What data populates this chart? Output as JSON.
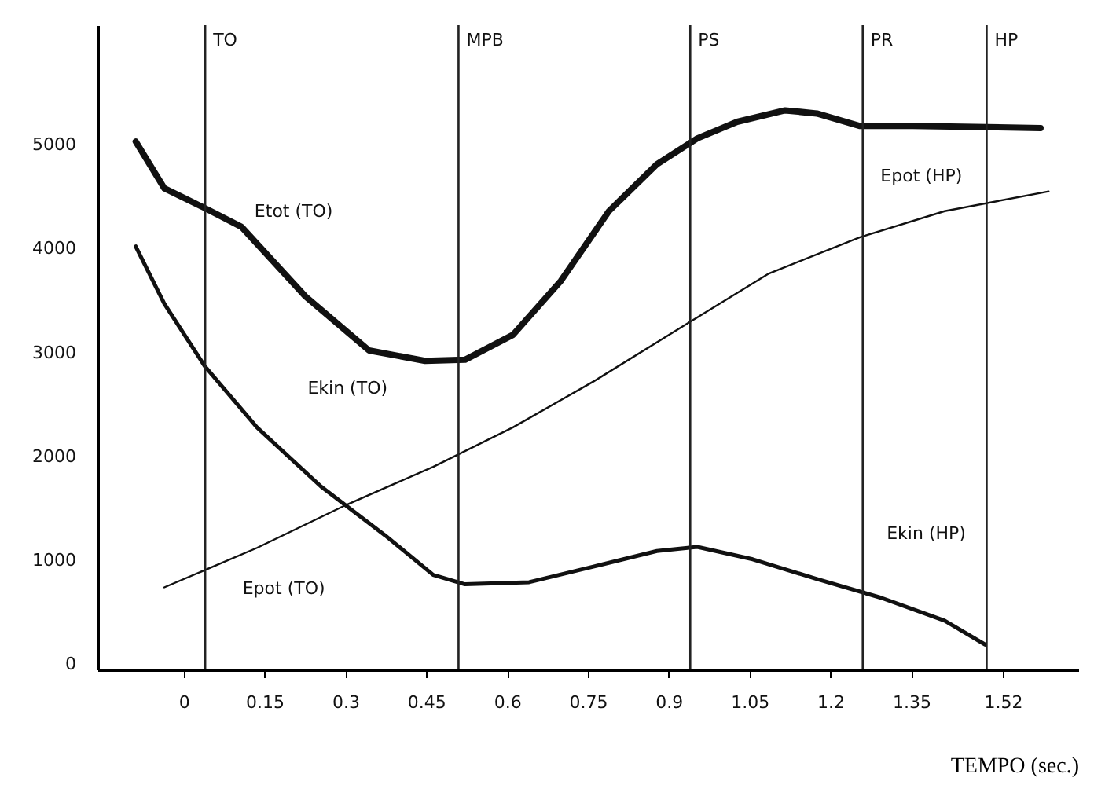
{
  "chart_data": {
    "type": "line",
    "xlabel": "TEMPO (sec.)",
    "x": [
      -0.089,
      -0.036,
      0.039,
      0.107,
      0.226,
      0.344,
      0.448,
      0.522,
      0.611,
      0.7,
      0.789,
      0.878,
      0.953,
      1.027,
      1.116,
      1.175,
      1.255,
      1.353,
      1.59
    ],
    "series": [
      {
        "color": "#111111",
        "values": [
          5030,
          4580,
          4390,
          4210,
          3540,
          3020,
          2920,
          2930,
          3170,
          3690,
          4360,
          4810,
          5060,
          5220,
          5330,
          5300,
          5180,
          5180,
          5160
        ]
      },
      {
        "color": "#111111",
        "x": [
          -0.089,
          -0.036,
          0.039,
          0.136,
          0.255,
          0.374,
          0.463,
          0.522,
          0.641,
          0.76,
          0.878,
          0.953,
          1.056,
          1.175,
          1.294,
          1.412,
          1.487
        ],
        "values": [
          4020,
          3470,
          2870,
          2280,
          1710,
          1240,
          860,
          770,
          790,
          940,
          1090,
          1130,
          1010,
          820,
          640,
          420,
          190
        ]
      },
      {
        "color": "#111111",
        "x": [
          -0.036,
          0.136,
          0.3,
          0.463,
          0.611,
          0.76,
          0.938,
          1.086,
          1.255,
          1.412,
          1.605
        ],
        "values": [
          740,
          1120,
          1530,
          1900,
          2280,
          2720,
          3290,
          3760,
          4110,
          4360,
          4550
        ]
      }
    ],
    "xlim": [
      -0.16,
      1.66
    ],
    "ylim": [
      -50,
      6150
    ],
    "xticks": [
      0,
      0.15,
      0.3,
      0.45,
      0.6,
      0.75,
      0.9,
      1.05,
      1.2,
      1.35,
      1.52
    ],
    "yticks": [
      0,
      1000,
      2000,
      3000,
      4000,
      5000
    ],
    "ref_lines": [
      {
        "axis": "x",
        "value": 0.04,
        "label": "TO"
      },
      {
        "axis": "x",
        "value": 0.51,
        "label": "MPB"
      },
      {
        "axis": "x",
        "value": 0.94,
        "label": "PS"
      },
      {
        "axis": "x",
        "value": 1.26,
        "label": "PR"
      },
      {
        "axis": "x",
        "value": 1.49,
        "label": "HP"
      }
    ],
    "annotations": [
      "Etot (TO)",
      "Ekin (TO)",
      "Epot (TO)",
      "Epot (HP)",
      "Ekin (HP)"
    ],
    "marker": "none",
    "line_style": "solid"
  }
}
